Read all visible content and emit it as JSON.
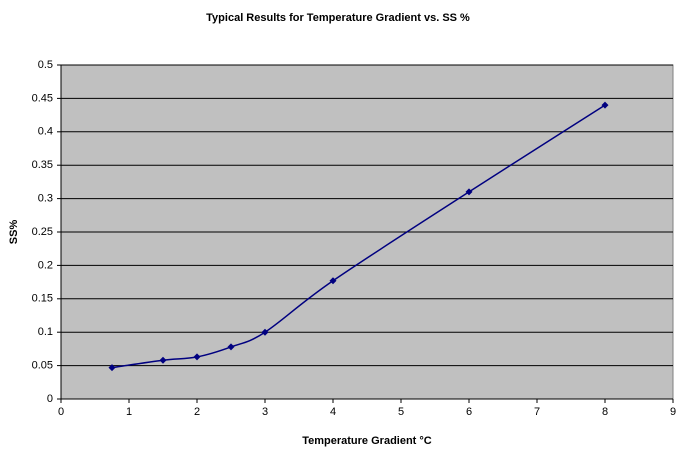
{
  "chart_data": {
    "type": "line",
    "title": "Typical Results for Temperature Gradient vs. SS %",
    "x_label": "Temperature Gradient °C",
    "y_label": "SS%",
    "x": [
      0.75,
      1.5,
      2,
      2.5,
      3,
      4,
      6,
      8
    ],
    "series": [
      {
        "color": "#000080",
        "values": [
          0.047,
          0.058,
          0.063,
          0.078,
          0.1,
          0.177,
          0.31,
          0.44
        ]
      }
    ],
    "xlim": [
      0,
      9
    ],
    "xticks": [
      0,
      1,
      2,
      3,
      4,
      5,
      6,
      7,
      8,
      9
    ],
    "ylim": [
      0,
      0.5
    ],
    "yticks": [
      0,
      0.05,
      0.1,
      0.15,
      0.2,
      0.25,
      0.3,
      0.35,
      0.4,
      0.45,
      0.5
    ],
    "grid": true,
    "smooth": true
  }
}
